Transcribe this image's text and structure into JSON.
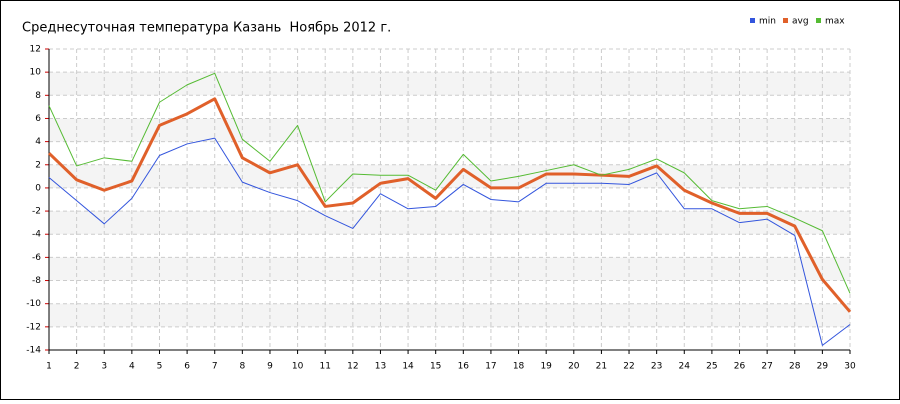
{
  "chart_data": {
    "type": "line",
    "title": "Среднесуточная температура Казань  Ноябрь 2012 г.",
    "x": [
      1,
      2,
      3,
      4,
      5,
      6,
      7,
      8,
      9,
      10,
      11,
      12,
      13,
      14,
      15,
      16,
      17,
      18,
      19,
      20,
      21,
      22,
      23,
      24,
      25,
      26,
      27,
      28,
      29,
      30
    ],
    "xlim": [
      1,
      30
    ],
    "xticks": [
      1,
      2,
      3,
      4,
      5,
      6,
      7,
      8,
      9,
      10,
      11,
      12,
      13,
      14,
      15,
      16,
      17,
      18,
      19,
      20,
      21,
      22,
      23,
      24,
      25,
      26,
      27,
      28,
      29,
      30
    ],
    "ylim": [
      -14,
      12
    ],
    "yticks": [
      -14,
      -12,
      -10,
      -8,
      -6,
      -4,
      -2,
      0,
      2,
      4,
      6,
      8,
      10,
      12
    ],
    "grid": true,
    "legend": "top-right",
    "series": [
      {
        "name": "min",
        "color": "#3355dd",
        "width": 1,
        "values": [
          0.9,
          -1.1,
          -3.1,
          -0.9,
          2.8,
          3.8,
          4.3,
          0.5,
          -0.4,
          -1.1,
          -2.4,
          -3.5,
          -0.5,
          -1.8,
          -1.6,
          0.3,
          -1.0,
          -1.2,
          0.4,
          0.4,
          0.4,
          0.3,
          1.3,
          -1.8,
          -1.8,
          -3.0,
          -2.7,
          -4.1,
          -13.6,
          -11.8
        ]
      },
      {
        "name": "avg",
        "color": "#e0602a",
        "width": 3,
        "values": [
          3.0,
          0.7,
          -0.2,
          0.6,
          5.4,
          6.4,
          7.7,
          2.6,
          1.3,
          2.0,
          -1.6,
          -1.3,
          0.4,
          0.8,
          -0.9,
          1.6,
          0.0,
          0.0,
          1.2,
          1.2,
          1.1,
          1.0,
          1.9,
          -0.2,
          -1.3,
          -2.2,
          -2.2,
          -3.3,
          -7.9,
          -10.7
        ]
      },
      {
        "name": "max",
        "color": "#55bb33",
        "width": 1,
        "values": [
          7.1,
          1.9,
          2.6,
          2.3,
          7.4,
          8.9,
          9.9,
          4.2,
          2.3,
          5.4,
          -1.2,
          1.2,
          1.1,
          1.1,
          -0.2,
          2.9,
          0.6,
          1.0,
          1.5,
          2.0,
          1.1,
          1.6,
          2.5,
          1.3,
          -1.1,
          -1.8,
          -1.6,
          -2.6,
          -3.7,
          -9.1
        ]
      }
    ]
  }
}
